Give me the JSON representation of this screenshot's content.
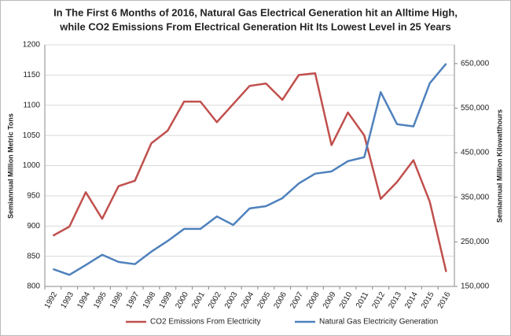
{
  "chart_data": {
    "type": "line",
    "title": [
      "In The First 6 Months of 2016, Natural Gas Electrical Generation hit an Alltime High,",
      "while CO2 Emissions From Electrical Generation Hit Its Lowest Level in 25 Years"
    ],
    "ylabel": "Semiannual Million Metric Tons",
    "y2label": "Semiannual Million Kilowatthours",
    "categories": [
      "1992",
      "1993",
      "1994",
      "1995",
      "1996",
      "1997",
      "1998",
      "1999",
      "2000",
      "2001",
      "2002",
      "2003",
      "2004",
      "2005",
      "2006",
      "2007",
      "2008",
      "2009",
      "2010",
      "2011",
      "2012",
      "2013",
      "2014",
      "2015",
      "2016"
    ],
    "series": [
      {
        "name": "CO2 Emissions From Electricity",
        "color": "#c0504d",
        "axis": "y",
        "values": [
          884,
          899,
          956,
          912,
          966,
          975,
          1037,
          1058,
          1106,
          1106,
          1072,
          1102,
          1132,
          1136,
          1109,
          1150,
          1153,
          1034,
          1088,
          1050,
          945,
          973,
          1009,
          940,
          824
        ]
      },
      {
        "name": "Natural Gas Electricity Generation",
        "color": "#4f81bd",
        "axis": "y2",
        "values": [
          189000,
          176000,
          198000,
          221000,
          205000,
          200000,
          228000,
          252000,
          279000,
          279000,
          307000,
          288000,
          325000,
          330000,
          348000,
          381000,
          403000,
          408000,
          431000,
          440000,
          586000,
          514000,
          509000,
          606000,
          650000
        ]
      }
    ],
    "ylim": [
      800,
      1200
    ],
    "yticks": [
      800,
      850,
      900,
      950,
      1000,
      1050,
      1100,
      1150,
      1200
    ],
    "y2lim": [
      150000,
      692000
    ],
    "y2ticks": [
      {
        "value": 150000,
        "label": "150,000"
      },
      {
        "value": 250000,
        "label": "250,000"
      },
      {
        "value": 350000,
        "label": "350,000"
      },
      {
        "value": 450000,
        "label": "450,000"
      },
      {
        "value": 550000,
        "label": "550,000"
      },
      {
        "value": 650000,
        "label": "650,000"
      }
    ],
    "grid": true,
    "legend": "bottom"
  }
}
